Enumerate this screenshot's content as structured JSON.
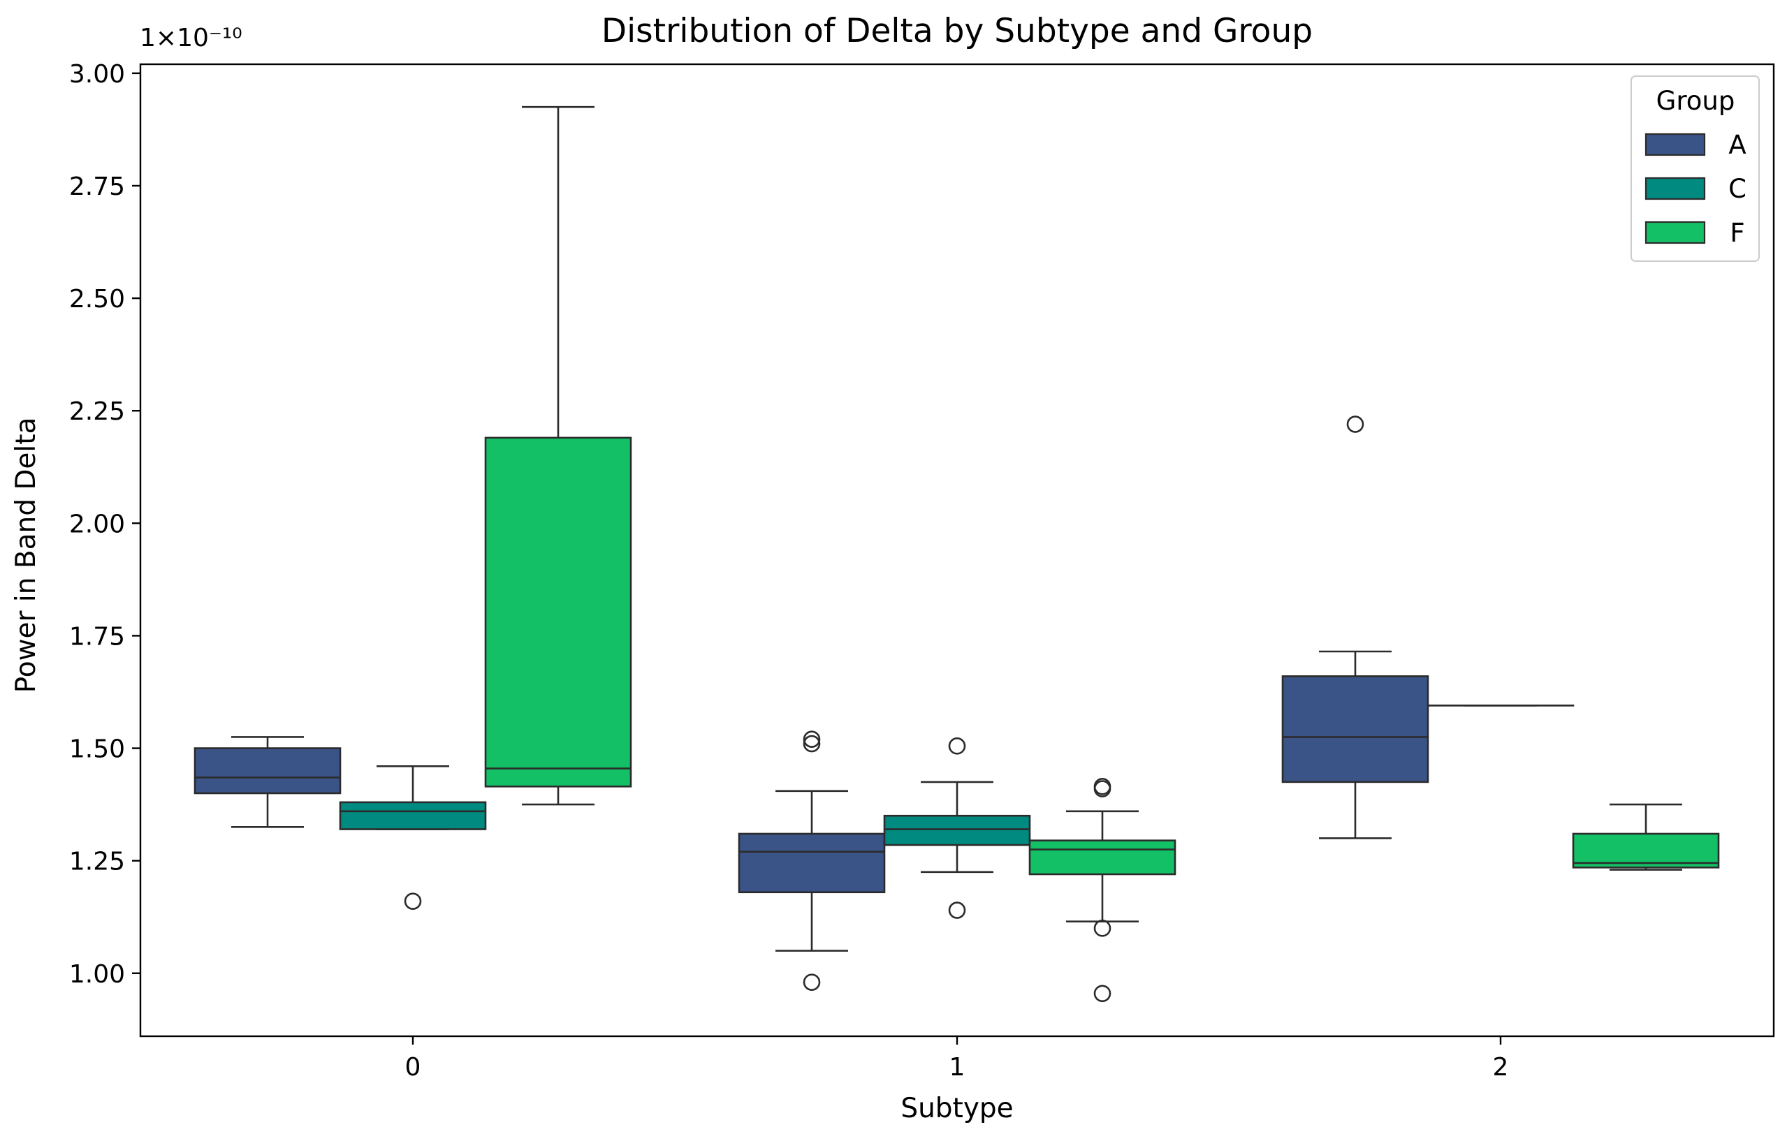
{
  "chart_data": {
    "type": "box",
    "title": "Distribution of Delta by Subtype and Group",
    "xlabel": "Subtype",
    "ylabel": "Power in Band Delta",
    "offset_text": "1×10⁻¹⁰",
    "ylim": [
      0.86,
      3.02
    ],
    "yticks": [
      1.0,
      1.25,
      1.5,
      1.75,
      2.0,
      2.25,
      2.5,
      2.75,
      3.0
    ],
    "ytick_labels": [
      "1.00",
      "1.25",
      "1.50",
      "1.75",
      "2.00",
      "2.25",
      "2.50",
      "2.75",
      "3.00"
    ],
    "categories": [
      "0",
      "1",
      "2"
    ],
    "legend": {
      "title": "Group",
      "location": "top-right"
    },
    "series": [
      {
        "name": "A",
        "color": "#3a5488",
        "boxes": [
          {
            "category": "0",
            "whisker_low": 1.325,
            "q1": 1.4,
            "median": 1.435,
            "q3": 1.5,
            "whisker_high": 1.525,
            "outliers": []
          },
          {
            "category": "1",
            "whisker_low": 1.05,
            "q1": 1.18,
            "median": 1.27,
            "q3": 1.31,
            "whisker_high": 1.405,
            "outliers": [
              0.98,
              1.51,
              1.52
            ]
          },
          {
            "category": "2",
            "whisker_low": 1.3,
            "q1": 1.425,
            "median": 1.525,
            "q3": 1.66,
            "whisker_high": 1.715,
            "outliers": [
              2.22
            ]
          }
        ]
      },
      {
        "name": "C",
        "color": "#008a80",
        "boxes": [
          {
            "category": "0",
            "whisker_low": 1.32,
            "q1": 1.32,
            "median": 1.36,
            "q3": 1.38,
            "whisker_high": 1.46,
            "outliers": [
              1.16
            ]
          },
          {
            "category": "1",
            "whisker_low": 1.225,
            "q1": 1.285,
            "median": 1.32,
            "q3": 1.35,
            "whisker_high": 1.425,
            "outliers": [
              1.14,
              1.505
            ]
          },
          {
            "category": "2",
            "whisker_low": 1.595,
            "q1": 1.595,
            "median": 1.595,
            "q3": 1.595,
            "whisker_high": 1.595,
            "outliers": []
          }
        ]
      },
      {
        "name": "F",
        "color": "#13c065",
        "boxes": [
          {
            "category": "0",
            "whisker_low": 1.375,
            "q1": 1.415,
            "median": 1.455,
            "q3": 2.19,
            "whisker_high": 2.925,
            "outliers": []
          },
          {
            "category": "1",
            "whisker_low": 1.115,
            "q1": 1.22,
            "median": 1.275,
            "q3": 1.295,
            "whisker_high": 1.36,
            "outliers": [
              0.955,
              1.1,
              1.41,
              1.415
            ]
          },
          {
            "category": "2",
            "whisker_low": 1.23,
            "q1": 1.235,
            "median": 1.245,
            "q3": 1.31,
            "whisker_high": 1.375,
            "outliers": []
          }
        ]
      }
    ]
  }
}
